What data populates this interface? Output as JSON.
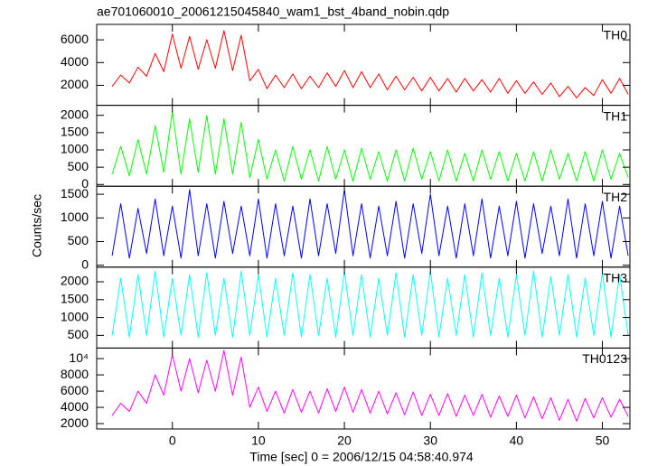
{
  "title": "ae701060010_20061215045840_wam1_bst_4band_nobin.qdp",
  "ylabel": "Counts/sec",
  "x_axis": {
    "label": "Time [sec] 0 = 2006/12/15 04:58:40.974",
    "xlim": [
      -8.8,
      53.2
    ],
    "xticks": [
      0,
      10,
      20,
      30,
      40,
      50
    ],
    "x": [
      -7,
      -6,
      -5,
      -4,
      -3,
      -2,
      -1,
      0,
      1,
      2,
      3,
      4,
      5,
      6,
      7,
      8,
      9,
      10,
      11,
      12,
      13,
      14,
      15,
      16,
      17,
      18,
      19,
      20,
      21,
      22,
      23,
      24,
      25,
      26,
      27,
      28,
      29,
      30,
      31,
      32,
      33,
      34,
      35,
      36,
      37,
      38,
      39,
      40,
      41,
      42,
      43,
      44,
      45,
      46,
      47,
      48,
      49,
      50,
      51,
      52,
      53
    ]
  },
  "chart_data": [
    {
      "type": "line",
      "ylim": [
        240,
        7360
      ],
      "yticks": [
        2000,
        4000,
        6000
      ],
      "series": [
        {
          "name": "TH0",
          "color": "#ff0000",
          "values": [
            1900,
            2900,
            2200,
            3600,
            2800,
            4800,
            3200,
            6500,
            3500,
            6300,
            3400,
            6000,
            3500,
            6800,
            3300,
            6400,
            2400,
            3400,
            1700,
            2900,
            1800,
            3000,
            1700,
            2800,
            1800,
            3100,
            1900,
            3300,
            1800,
            3200,
            1800,
            3000,
            1600,
            2800,
            1600,
            2700,
            1500,
            2700,
            1500,
            2600,
            1400,
            2600,
            1500,
            2500,
            1400,
            2600,
            1300,
            2400,
            1300,
            2300,
            1200,
            2200,
            1000,
            1900,
            900,
            1800,
            1100,
            2500,
            1300,
            2600,
            1200
          ]
        }
      ]
    },
    {
      "type": "line",
      "ylim": [
        -50,
        2290
      ],
      "yticks": [
        0,
        500,
        1000,
        1500,
        2000
      ],
      "series": [
        {
          "name": "TH1",
          "color": "#00ff00",
          "values": [
            300,
            1100,
            250,
            1300,
            300,
            1700,
            350,
            2100,
            300,
            1900,
            350,
            2000,
            300,
            1900,
            300,
            1800,
            200,
            1300,
            150,
            1000,
            100,
            1100,
            150,
            1000,
            100,
            1100,
            150,
            1000,
            100,
            1050,
            150,
            950,
            100,
            1000,
            100,
            1050,
            150,
            950,
            100,
            1000,
            100,
            900,
            100,
            1000,
            150,
            950,
            100,
            900,
            100,
            950,
            100,
            1000,
            150,
            900,
            100,
            950,
            100,
            1000,
            150,
            900,
            200
          ]
        }
      ]
    },
    {
      "type": "line",
      "ylim": [
        -40,
        1670
      ],
      "yticks": [
        0,
        500,
        1000,
        1500
      ],
      "series": [
        {
          "name": "TH2",
          "color": "#0000ff",
          "values": [
            200,
            1300,
            150,
            1200,
            250,
            1400,
            200,
            1250,
            150,
            1600,
            200,
            1300,
            150,
            1350,
            250,
            1250,
            200,
            1400,
            150,
            1300,
            200,
            1250,
            150,
            1400,
            200,
            1300,
            250,
            1600,
            200,
            1300,
            150,
            1250,
            200,
            1350,
            150,
            1300,
            250,
            1500,
            200,
            1250,
            150,
            1300,
            200,
            1400,
            150,
            1250,
            200,
            1350,
            150,
            1300,
            250,
            1250,
            200,
            1400,
            150,
            1300,
            200,
            1350,
            150,
            1250,
            200
          ]
        }
      ]
    },
    {
      "type": "line",
      "ylim": [
        145,
        2410
      ],
      "yticks": [
        500,
        1000,
        1500,
        2000
      ],
      "series": [
        {
          "name": "TH3",
          "color": "#00ffff",
          "values": [
            500,
            2100,
            450,
            2200,
            500,
            2300,
            450,
            2100,
            500,
            2200,
            450,
            2250,
            500,
            2100,
            450,
            2300,
            500,
            2200,
            450,
            2100,
            500,
            2250,
            450,
            2200,
            500,
            2100,
            450,
            2300,
            500,
            2200,
            450,
            2100,
            500,
            2250,
            450,
            2200,
            500,
            2300,
            450,
            2100,
            500,
            2200,
            450,
            2250,
            500,
            2100,
            450,
            2200,
            500,
            2300,
            450,
            2150,
            500,
            2200,
            450,
            2100,
            500,
            2250,
            450,
            2200,
            500
          ]
        }
      ]
    },
    {
      "type": "line",
      "ylim": [
        1340,
        11300
      ],
      "yticks": [
        2000,
        4000,
        6000,
        8000,
        {
          "value": 10000,
          "label": "10⁴"
        }
      ],
      "series": [
        {
          "name": "TH0123",
          "color": "#ff00ff",
          "values": [
            3000,
            4500,
            3500,
            6000,
            4500,
            8000,
            5500,
            10500,
            6000,
            10000,
            5800,
            9800,
            6000,
            11000,
            5500,
            10200,
            4000,
            6500,
            3500,
            6000,
            3300,
            6200,
            3400,
            6000,
            3300,
            6300,
            3500,
            6500,
            3400,
            6200,
            3300,
            6000,
            3200,
            5800,
            3100,
            5900,
            3000,
            5600,
            3000,
            5700,
            2900,
            5500,
            3000,
            5600,
            2800,
            5400,
            2900,
            5500,
            2700,
            5300,
            2600,
            5200,
            2400,
            5000,
            2300,
            5100,
            2700,
            5200,
            2800,
            5000,
            2900
          ]
        }
      ]
    }
  ]
}
